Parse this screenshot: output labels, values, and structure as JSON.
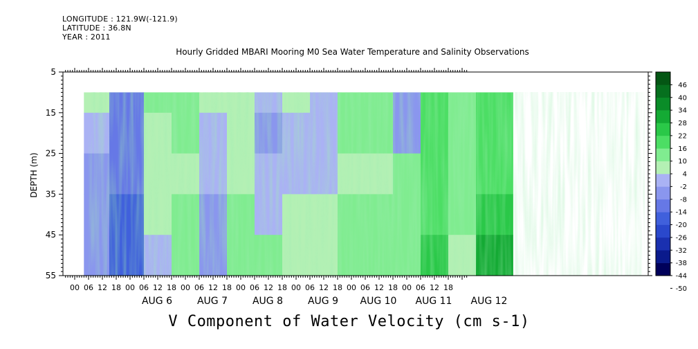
{
  "meta": {
    "longitude": "LONGITUDE : 121.9W(-121.9)",
    "latitude": "LATITUDE : 36.8N",
    "year": "YEAR : 2011"
  },
  "chart_data": {
    "type": "heatmap",
    "title": "Hourly Gridded MBARI Mooring M0 Sea Water Temperature and Salinity Observations",
    "xlabel": "V Component of Water Velocity (cm s-1)",
    "ylabel": "DEPTH (m)",
    "y_ticks": [
      5,
      15,
      25,
      35,
      45,
      55
    ],
    "ylim": [
      55,
      5
    ],
    "y_reversed": true,
    "x_hour_ticks": [
      "00",
      "06",
      "12",
      "18",
      "00",
      "06",
      "12",
      "18",
      "00",
      "06",
      "12",
      "18",
      "00",
      "06",
      "12",
      "18",
      "00",
      "06",
      "12",
      "18",
      "00",
      "06",
      "12",
      "18",
      "00",
      "06",
      "12",
      "18"
    ],
    "x_day_labels": [
      "AUG  6",
      "AUG  7",
      "AUG  8",
      "AUG  9",
      "AUG 10",
      "AUG 11",
      "AUG 12"
    ],
    "data_depth_range_m": [
      10,
      55
    ],
    "time_range": [
      "AUG 5 04:00",
      "AUG 12 22:00"
    ],
    "colorbar": {
      "levels": [
        -50,
        -44,
        -38,
        -32,
        -26,
        -20,
        -14,
        -8,
        -2,
        4,
        10,
        16,
        22,
        28,
        34,
        40,
        46
      ],
      "labels": [
        "46",
        "40",
        "34",
        "28",
        "22",
        "16",
        "10",
        "4",
        "-2",
        "-8",
        "-14",
        "-20",
        "-26",
        "-32",
        "-38",
        "-44",
        "-50"
      ]
    },
    "velocity_grid": {
      "depth_rows_m": [
        10,
        20,
        30,
        40,
        50
      ],
      "times": [
        "AUG 5 06",
        "AUG 6 00",
        "AUG 6 12",
        "AUG 7 00",
        "AUG 7 12",
        "AUG 8 00",
        "AUG 8 12",
        "AUG 9 00",
        "AUG 9 12",
        "AUG 10 00",
        "AUG 10 12",
        "AUG 11 00",
        "AUG 11 12",
        "AUG 12 00",
        "AUG 12 12"
      ],
      "values": [
        [
          2,
          -14,
          6,
          8,
          4,
          2,
          -6,
          4,
          -4,
          8,
          10,
          -10,
          14,
          10,
          12
        ],
        [
          -4,
          -16,
          4,
          6,
          -2,
          2,
          -8,
          -2,
          -6,
          6,
          6,
          -8,
          16,
          8,
          12
        ],
        [
          -8,
          -18,
          2,
          4,
          -6,
          4,
          -6,
          -4,
          -4,
          4,
          2,
          6,
          16,
          8,
          14
        ],
        [
          -10,
          -20,
          0,
          6,
          -8,
          6,
          -4,
          2,
          2,
          6,
          6,
          8,
          16,
          6,
          20
        ],
        [
          -12,
          -22,
          -2,
          8,
          -10,
          8,
          6,
          4,
          4,
          8,
          10,
          10,
          18,
          2,
          24
        ]
      ]
    }
  }
}
